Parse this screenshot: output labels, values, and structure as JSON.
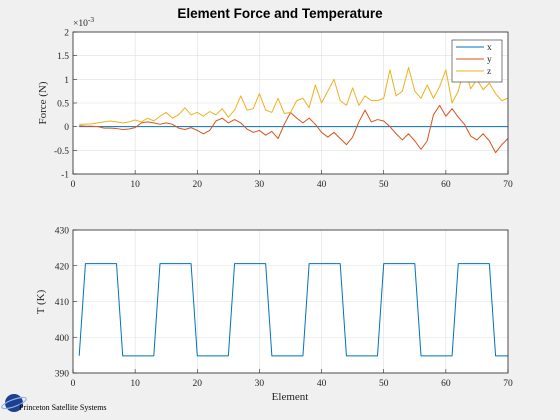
{
  "figure": {
    "title": "Element Force and Temperature",
    "watermark": "Princeton Satellite Systems",
    "background": "#f0f0f0"
  },
  "chart_data": [
    {
      "type": "line",
      "ylabel": "Force (N)",
      "xlabel": "",
      "exponent_label": "10",
      "exponent_power": "-3",
      "xlim": [
        0,
        70
      ],
      "ylim": [
        -1,
        2
      ],
      "xticks": [
        0,
        10,
        20,
        30,
        40,
        50,
        60,
        70
      ],
      "yticks": [
        -1,
        -0.5,
        0,
        0.5,
        1,
        1.5,
        2
      ],
      "grid": true,
      "legend_placement": "top-right",
      "x": [
        1,
        2,
        3,
        4,
        5,
        6,
        7,
        8,
        9,
        10,
        11,
        12,
        13,
        14,
        15,
        16,
        17,
        18,
        19,
        20,
        21,
        22,
        23,
        24,
        25,
        26,
        27,
        28,
        29,
        30,
        31,
        32,
        33,
        34,
        35,
        36,
        37,
        38,
        39,
        40,
        41,
        42,
        43,
        44,
        45,
        46,
        47,
        48,
        49,
        50,
        51,
        52,
        53,
        54,
        55,
        56,
        57,
        58,
        59,
        60,
        61,
        62,
        63,
        64,
        65,
        66,
        67,
        68,
        69,
        70
      ],
      "series": [
        {
          "name": "x",
          "color": "#0072bd",
          "values": [
            0,
            0,
            0,
            0,
            0,
            0,
            0,
            0,
            0,
            0,
            0,
            0,
            0,
            0,
            0,
            0,
            0,
            0,
            0,
            0,
            0,
            0,
            0,
            0,
            0,
            0,
            0,
            0,
            0,
            0,
            0,
            0,
            0,
            0,
            0,
            0,
            0,
            0,
            0,
            0,
            0,
            0,
            0,
            0,
            0,
            0,
            0,
            0,
            0,
            0,
            0,
            0,
            0,
            0,
            0,
            0,
            0,
            0,
            0,
            0,
            0,
            0,
            0,
            0,
            0,
            0,
            0,
            0,
            0,
            0
          ]
        },
        {
          "name": "y",
          "color": "#d95319",
          "values": [
            0.02,
            0.01,
            0.01,
            0.0,
            -0.03,
            -0.03,
            -0.04,
            -0.06,
            -0.05,
            -0.02,
            0.08,
            0.1,
            0.08,
            0.05,
            0.08,
            0.05,
            -0.03,
            -0.06,
            -0.02,
            -0.08,
            -0.15,
            -0.08,
            0.12,
            0.18,
            0.08,
            0.15,
            0.08,
            -0.05,
            -0.12,
            -0.08,
            -0.18,
            -0.1,
            -0.25,
            0.05,
            0.3,
            0.18,
            0.08,
            0.18,
            0.05,
            -0.12,
            -0.22,
            -0.12,
            -0.25,
            -0.38,
            -0.22,
            0.1,
            0.35,
            0.1,
            0.15,
            0.12,
            0.0,
            -0.15,
            -0.28,
            -0.15,
            -0.3,
            -0.48,
            -0.3,
            0.25,
            0.45,
            0.22,
            0.38,
            0.2,
            0.05,
            -0.2,
            -0.28,
            -0.15,
            -0.3,
            -0.55,
            -0.38,
            -0.25
          ]
        },
        {
          "name": "z",
          "color": "#edb120",
          "values": [
            0.05,
            0.05,
            0.06,
            0.08,
            0.1,
            0.12,
            0.1,
            0.08,
            0.1,
            0.14,
            0.1,
            0.18,
            0.12,
            0.22,
            0.3,
            0.18,
            0.25,
            0.4,
            0.25,
            0.3,
            0.22,
            0.32,
            0.25,
            0.38,
            0.2,
            0.35,
            0.65,
            0.35,
            0.38,
            0.7,
            0.35,
            0.3,
            0.6,
            0.28,
            0.3,
            0.55,
            0.6,
            0.4,
            0.88,
            0.5,
            0.75,
            1.0,
            0.55,
            0.45,
            0.82,
            0.45,
            0.65,
            0.55,
            0.55,
            0.6,
            1.2,
            0.65,
            0.75,
            1.25,
            0.75,
            0.6,
            0.88,
            0.6,
            0.85,
            1.2,
            0.5,
            0.75,
            1.25,
            0.8,
            1.0,
            0.78,
            0.92,
            0.7,
            0.55,
            0.6
          ]
        }
      ]
    },
    {
      "type": "line",
      "ylabel": "T (K)",
      "xlabel": "Element",
      "xlim": [
        0,
        70
      ],
      "ylim": [
        390,
        430
      ],
      "xticks": [
        0,
        10,
        20,
        30,
        40,
        50,
        60,
        70
      ],
      "yticks": [
        390,
        400,
        410,
        420,
        430
      ],
      "grid": true,
      "x": [
        1,
        2,
        3,
        4,
        5,
        6,
        7,
        8,
        9,
        10,
        11,
        12,
        13,
        14,
        15,
        16,
        17,
        18,
        19,
        20,
        21,
        22,
        23,
        24,
        25,
        26,
        27,
        28,
        29,
        30,
        31,
        32,
        33,
        34,
        35,
        36,
        37,
        38,
        39,
        40,
        41,
        42,
        43,
        44,
        45,
        46,
        47,
        48,
        49,
        50,
        51,
        52,
        53,
        54,
        55,
        56,
        57,
        58,
        59,
        60,
        61,
        62,
        63,
        64,
        65,
        66,
        67,
        68,
        69,
        70
      ],
      "series": [
        {
          "name": "",
          "color": "#0072bd",
          "values": [
            394.8,
            420.6,
            420.6,
            420.6,
            420.6,
            420.6,
            420.6,
            394.8,
            394.8,
            394.8,
            394.8,
            394.8,
            394.8,
            420.6,
            420.6,
            420.6,
            420.6,
            420.6,
            420.6,
            394.8,
            394.8,
            394.8,
            394.8,
            394.8,
            394.8,
            420.6,
            420.6,
            420.6,
            420.6,
            420.6,
            420.6,
            394.8,
            394.8,
            394.8,
            394.8,
            394.8,
            394.8,
            420.6,
            420.6,
            420.6,
            420.6,
            420.6,
            420.6,
            394.8,
            394.8,
            394.8,
            394.8,
            394.8,
            394.8,
            420.6,
            420.6,
            420.6,
            420.6,
            420.6,
            420.6,
            394.8,
            394.8,
            394.8,
            394.8,
            394.8,
            394.8,
            420.6,
            420.6,
            420.6,
            420.6,
            420.6,
            420.6,
            394.8,
            394.8,
            394.8
          ]
        }
      ]
    }
  ]
}
